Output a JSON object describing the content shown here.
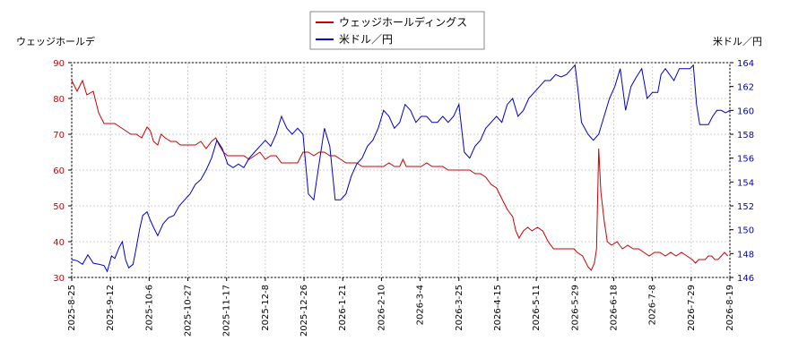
{
  "chart_data": {
    "type": "line",
    "title": "",
    "legend": {
      "placement": "top-center",
      "entries": [
        "ウェッジホールディングス",
        "米ドル／円"
      ]
    },
    "y_left_label": "ウェッジホールデ",
    "y_right_label": "米ドル／円",
    "grid": true,
    "x_tick_labels": [
      "2025-8-25",
      "2025-9-12",
      "2025-10-6",
      "2025-10-27",
      "2025-11-17",
      "2025-12-8",
      "2025-12-26",
      "2026-1-21",
      "2026-2-10",
      "2026-3-4",
      "2026-3-25",
      "2026-4-15",
      "2026-5-11",
      "2026-5-29",
      "2026-6-18",
      "2026-7-8",
      "2026-7-29",
      "2026-8-19"
    ],
    "y_left_ticks": [
      30,
      40,
      50,
      60,
      70,
      80,
      90
    ],
    "y_right_ticks": [
      146,
      148,
      150,
      152,
      154,
      156,
      158,
      160,
      162,
      164
    ],
    "y_left_range": [
      30,
      90
    ],
    "y_right_range": [
      146,
      164
    ],
    "colors": {
      "stock": "#cc0000",
      "fx": "#0000cc",
      "left_axis_text": "#cc0000",
      "right_axis_text": "#0000cc",
      "grid": "#cccccc"
    },
    "series": [
      {
        "name": "ウェッジホールディングス",
        "axis": "left",
        "values": [
          [
            0,
            85
          ],
          [
            5,
            82
          ],
          [
            10,
            85
          ],
          [
            14,
            81
          ],
          [
            20,
            82
          ],
          [
            25,
            76
          ],
          [
            30,
            73
          ],
          [
            35,
            73
          ],
          [
            40,
            73
          ],
          [
            45,
            72
          ],
          [
            50,
            71
          ],
          [
            55,
            70
          ],
          [
            60,
            70
          ],
          [
            65,
            69
          ],
          [
            70,
            72
          ],
          [
            73,
            71
          ],
          [
            76,
            68
          ],
          [
            80,
            67
          ],
          [
            83,
            70
          ],
          [
            87,
            69
          ],
          [
            92,
            68
          ],
          [
            97,
            68
          ],
          [
            101,
            67
          ],
          [
            105,
            67
          ],
          [
            110,
            67
          ],
          [
            115,
            67
          ],
          [
            120,
            68
          ],
          [
            125,
            66
          ],
          [
            130,
            68
          ],
          [
            134,
            69
          ],
          [
            137,
            67
          ],
          [
            141,
            65
          ],
          [
            145,
            64
          ],
          [
            150,
            64
          ],
          [
            155,
            64
          ],
          [
            160,
            64
          ],
          [
            165,
            63
          ],
          [
            170,
            64
          ],
          [
            175,
            65
          ],
          [
            180,
            63
          ],
          [
            185,
            64
          ],
          [
            190,
            64
          ],
          [
            195,
            62
          ],
          [
            200,
            62
          ],
          [
            205,
            62
          ],
          [
            210,
            62
          ],
          [
            215,
            65
          ],
          [
            220,
            65
          ],
          [
            225,
            64
          ],
          [
            230,
            65
          ],
          [
            235,
            65
          ],
          [
            240,
            64
          ],
          [
            245,
            64
          ],
          [
            250,
            63
          ],
          [
            255,
            62
          ],
          [
            260,
            62
          ],
          [
            265,
            62
          ],
          [
            270,
            61
          ],
          [
            275,
            61
          ],
          [
            280,
            61
          ],
          [
            285,
            61
          ],
          [
            290,
            61
          ],
          [
            295,
            62
          ],
          [
            300,
            61
          ],
          [
            305,
            61
          ],
          [
            308,
            63
          ],
          [
            311,
            61
          ],
          [
            315,
            61
          ],
          [
            320,
            61
          ],
          [
            325,
            61
          ],
          [
            330,
            62
          ],
          [
            335,
            61
          ],
          [
            340,
            61
          ],
          [
            345,
            61
          ],
          [
            350,
            60
          ],
          [
            355,
            60
          ],
          [
            360,
            60
          ],
          [
            365,
            60
          ],
          [
            370,
            60
          ],
          [
            375,
            59
          ],
          [
            380,
            59
          ],
          [
            385,
            58
          ],
          [
            390,
            56
          ],
          [
            395,
            55
          ],
          [
            400,
            52
          ],
          [
            405,
            49
          ],
          [
            410,
            47
          ],
          [
            413,
            43
          ],
          [
            416,
            41
          ],
          [
            420,
            43
          ],
          [
            424,
            44
          ],
          [
            428,
            43
          ],
          [
            433,
            44
          ],
          [
            438,
            43
          ],
          [
            443,
            40
          ],
          [
            448,
            38
          ],
          [
            453,
            38
          ],
          [
            458,
            38
          ],
          [
            463,
            38
          ],
          [
            467,
            38
          ],
          [
            470,
            37
          ],
          [
            475,
            36
          ],
          [
            480,
            33
          ],
          [
            483,
            32
          ],
          [
            486,
            34
          ],
          [
            488,
            38
          ],
          [
            490,
            66
          ],
          [
            492,
            54
          ],
          [
            495,
            46
          ],
          [
            498,
            40
          ],
          [
            502,
            39
          ],
          [
            507,
            40
          ],
          [
            512,
            38
          ],
          [
            517,
            39
          ],
          [
            522,
            38
          ],
          [
            527,
            38
          ],
          [
            532,
            37
          ],
          [
            537,
            36
          ],
          [
            542,
            37
          ],
          [
            547,
            37
          ],
          [
            552,
            36
          ],
          [
            557,
            37
          ],
          [
            562,
            36
          ],
          [
            567,
            37
          ],
          [
            572,
            36
          ],
          [
            577,
            35
          ],
          [
            580,
            34
          ],
          [
            583,
            35
          ],
          [
            586,
            35
          ],
          [
            589,
            35
          ],
          [
            592,
            36
          ],
          [
            595,
            36
          ],
          [
            598,
            35
          ],
          [
            601,
            35
          ],
          [
            604,
            36
          ],
          [
            607,
            37
          ],
          [
            610,
            36
          ]
        ]
      },
      {
        "name": "米ドル／円",
        "axis": "right",
        "values": [
          [
            0,
            147.5
          ],
          [
            5,
            147.4
          ],
          [
            10,
            147.1
          ],
          [
            15,
            147.9
          ],
          [
            20,
            147.2
          ],
          [
            25,
            147.1
          ],
          [
            30,
            147.0
          ],
          [
            33,
            146.5
          ],
          [
            37,
            147.8
          ],
          [
            40,
            147.6
          ],
          [
            44,
            148.5
          ],
          [
            47,
            149.0
          ],
          [
            50,
            147.5
          ],
          [
            53,
            146.8
          ],
          [
            57,
            147.1
          ],
          [
            60,
            148.5
          ],
          [
            63,
            150.0
          ],
          [
            66,
            151.2
          ],
          [
            70,
            151.5
          ],
          [
            73,
            150.8
          ],
          [
            76,
            150.2
          ],
          [
            80,
            149.5
          ],
          [
            85,
            150.5
          ],
          [
            90,
            151.0
          ],
          [
            95,
            151.2
          ],
          [
            100,
            152.0
          ],
          [
            105,
            152.5
          ],
          [
            110,
            153.0
          ],
          [
            115,
            153.8
          ],
          [
            120,
            154.2
          ],
          [
            125,
            155.0
          ],
          [
            130,
            156.0
          ],
          [
            135,
            157.5
          ],
          [
            140,
            156.8
          ],
          [
            145,
            155.5
          ],
          [
            150,
            155.2
          ],
          [
            155,
            155.5
          ],
          [
            160,
            155.2
          ],
          [
            165,
            156.0
          ],
          [
            170,
            156.5
          ],
          [
            175,
            157.0
          ],
          [
            180,
            157.5
          ],
          [
            185,
            157.0
          ],
          [
            190,
            158.0
          ],
          [
            195,
            159.5
          ],
          [
            200,
            158.5
          ],
          [
            205,
            158.0
          ],
          [
            210,
            158.5
          ],
          [
            215,
            158.0
          ],
          [
            220,
            153.0
          ],
          [
            225,
            152.5
          ],
          [
            230,
            155.5
          ],
          [
            235,
            158.5
          ],
          [
            240,
            157.0
          ],
          [
            245,
            152.5
          ],
          [
            250,
            152.5
          ],
          [
            255,
            153.0
          ],
          [
            260,
            154.5
          ],
          [
            265,
            155.5
          ],
          [
            270,
            156.0
          ],
          [
            275,
            157.0
          ],
          [
            280,
            157.5
          ],
          [
            285,
            158.5
          ],
          [
            290,
            160.0
          ],
          [
            295,
            159.5
          ],
          [
            300,
            158.5
          ],
          [
            305,
            159.0
          ],
          [
            310,
            160.5
          ],
          [
            315,
            160.0
          ],
          [
            320,
            159.0
          ],
          [
            325,
            159.5
          ],
          [
            330,
            159.5
          ],
          [
            335,
            159.0
          ],
          [
            340,
            159.0
          ],
          [
            345,
            159.5
          ],
          [
            350,
            159.0
          ],
          [
            355,
            159.5
          ],
          [
            360,
            160.5
          ],
          [
            365,
            156.5
          ],
          [
            370,
            156.0
          ],
          [
            375,
            157.0
          ],
          [
            380,
            157.5
          ],
          [
            385,
            158.5
          ],
          [
            390,
            159.0
          ],
          [
            395,
            159.5
          ],
          [
            400,
            159.0
          ],
          [
            405,
            160.5
          ],
          [
            410,
            161.0
          ],
          [
            415,
            159.5
          ],
          [
            420,
            160.0
          ],
          [
            425,
            161.0
          ],
          [
            430,
            161.5
          ],
          [
            435,
            162.0
          ],
          [
            440,
            162.5
          ],
          [
            445,
            162.5
          ],
          [
            450,
            163.0
          ],
          [
            455,
            162.8
          ],
          [
            460,
            163.0
          ],
          [
            465,
            163.5
          ],
          [
            468,
            163.8
          ],
          [
            471,
            161.5
          ],
          [
            474,
            159.0
          ],
          [
            477,
            158.5
          ],
          [
            480,
            158.0
          ],
          [
            485,
            157.5
          ],
          [
            490,
            158.0
          ],
          [
            495,
            159.5
          ],
          [
            500,
            161.0
          ],
          [
            505,
            162.0
          ],
          [
            510,
            163.5
          ],
          [
            515,
            160.0
          ],
          [
            520,
            162.0
          ],
          [
            525,
            162.8
          ],
          [
            530,
            163.5
          ],
          [
            535,
            161.0
          ],
          [
            540,
            161.5
          ],
          [
            545,
            161.5
          ],
          [
            548,
            163.0
          ],
          [
            552,
            163.5
          ],
          [
            556,
            163.0
          ],
          [
            560,
            162.5
          ],
          [
            565,
            163.5
          ],
          [
            570,
            163.5
          ],
          [
            575,
            163.5
          ],
          [
            578,
            163.8
          ],
          [
            581,
            160.5
          ],
          [
            584,
            158.8
          ],
          [
            588,
            158.8
          ],
          [
            592,
            158.8
          ],
          [
            596,
            159.5
          ],
          [
            600,
            160.0
          ],
          [
            604,
            160.0
          ],
          [
            608,
            159.8
          ],
          [
            612,
            160.0
          ]
        ]
      }
    ],
    "x_domain": [
      0,
      612
    ]
  }
}
